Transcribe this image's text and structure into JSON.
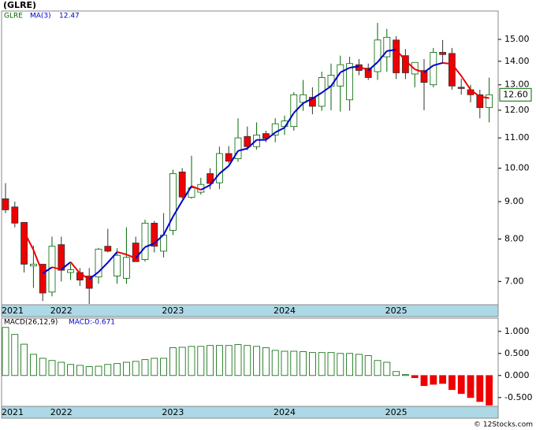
{
  "credit": "© 12Stocks.com",
  "chart_data": [
    {
      "type": "candlestick",
      "title": "(GLRE)",
      "categories": [
        "2021",
        null,
        null,
        null,
        null,
        null,
        "2022",
        null,
        null,
        null,
        null,
        null,
        null,
        null,
        null,
        null,
        null,
        null,
        "2023",
        null,
        null,
        null,
        null,
        null,
        null,
        null,
        null,
        null,
        null,
        null,
        "2024",
        null,
        null,
        null,
        null,
        null,
        null,
        null,
        null,
        null,
        null,
        null,
        "2025",
        null,
        null,
        null,
        null,
        null,
        null,
        null,
        null,
        null,
        null
      ],
      "series": [
        {
          "name": "GLRE",
          "color": "#006600",
          "down_color": "#ee0000",
          "open": [
            9.08,
            8.85,
            8.43,
            7.35,
            7.39,
            6.77,
            7.86,
            7.2,
            7.2,
            7.12,
            7.1,
            7.82,
            7.12,
            7.07,
            7.9,
            7.5,
            8.41,
            7.7,
            8.22,
            9.88,
            9.12,
            9.27,
            9.83,
            9.55,
            10.47,
            10.3,
            11.05,
            10.7,
            11.15,
            11.1,
            11.4,
            11.4,
            12.3,
            12.5,
            12.15,
            12.95,
            12.95,
            12.4,
            13.85,
            13.7,
            13.55,
            14.2,
            14.97,
            14.25,
            13.45,
            13.6,
            13.0,
            14.4,
            14.35,
            12.9,
            12.8,
            12.6,
            12.1
          ],
          "high": [
            9.54,
            9.0,
            8.43,
            7.84,
            7.39,
            8.06,
            8.06,
            7.4,
            7.3,
            7.3,
            7.78,
            8.26,
            7.77,
            8.3,
            8.06,
            8.5,
            8.47,
            8.68,
            9.95,
            10.0,
            10.4,
            9.7,
            10.0,
            10.7,
            10.72,
            11.7,
            11.4,
            11.55,
            11.25,
            11.7,
            11.8,
            12.7,
            13.2,
            12.9,
            13.55,
            13.9,
            14.25,
            14.2,
            14.1,
            13.9,
            15.8,
            15.5,
            15.15,
            14.55,
            13.9,
            14.1,
            14.6,
            14.97,
            14.6,
            13.25,
            13.0,
            12.8,
            13.3
          ],
          "low": [
            8.68,
            8.3,
            7.2,
            6.86,
            6.58,
            6.68,
            7.0,
            7.03,
            6.9,
            6.52,
            6.95,
            7.67,
            6.95,
            6.95,
            7.45,
            7.45,
            7.67,
            7.55,
            8.1,
            9.08,
            9.08,
            9.2,
            9.36,
            9.36,
            10.15,
            10.2,
            10.58,
            10.6,
            10.85,
            10.85,
            11.1,
            11.25,
            11.98,
            11.85,
            11.98,
            12.0,
            11.95,
            11.98,
            13.4,
            13.2,
            13.2,
            13.55,
            13.24,
            13.24,
            12.9,
            12.0,
            12.9,
            13.9,
            12.8,
            12.6,
            12.3,
            11.7,
            11.55
          ],
          "close": [
            8.77,
            8.41,
            7.39,
            7.39,
            6.75,
            7.82,
            7.25,
            7.26,
            7.03,
            6.85,
            7.75,
            7.7,
            7.6,
            7.55,
            7.45,
            8.41,
            7.82,
            8.1,
            9.83,
            9.13,
            9.4,
            9.5,
            9.53,
            10.47,
            10.22,
            11.0,
            10.7,
            11.1,
            10.98,
            11.5,
            11.6,
            12.6,
            12.6,
            12.15,
            13.3,
            13.4,
            13.85,
            13.9,
            13.6,
            13.3,
            14.97,
            15.1,
            13.5,
            13.5,
            13.95,
            13.1,
            14.4,
            14.3,
            12.95,
            12.85,
            12.6,
            12.1,
            12.6
          ],
          "close_label": "12.60"
        }
      ],
      "ma": {
        "name": "MA(3)",
        "value_label": "12.47",
        "color": "#0000cc",
        "down_color": "#ee0000",
        "values": [
          null,
          null,
          8.19,
          7.73,
          7.18,
          7.32,
          7.27,
          7.44,
          7.18,
          7.05,
          7.21,
          7.43,
          7.68,
          7.62,
          7.53,
          7.8,
          7.89,
          8.11,
          8.58,
          9.02,
          9.45,
          9.34,
          9.48,
          9.83,
          10.07,
          10.56,
          10.64,
          10.93,
          10.93,
          11.19,
          11.36,
          11.9,
          12.27,
          12.45,
          12.68,
          12.95,
          13.52,
          13.72,
          13.78,
          13.6,
          13.96,
          14.46,
          14.52,
          14.03,
          13.65,
          13.52,
          13.82,
          13.93,
          13.88,
          13.37,
          12.8,
          12.52,
          12.47
        ]
      },
      "ylim": [
        6.52,
        16.4
      ],
      "log_scale": true,
      "yticks": [
        {
          "value": 7,
          "label": "7.00"
        },
        {
          "value": 8,
          "label": "8.00"
        },
        {
          "value": 9,
          "label": "9.00"
        },
        {
          "value": 10,
          "label": "10.00"
        },
        {
          "value": 11,
          "label": "11.00"
        },
        {
          "value": 12,
          "label": "12.00"
        },
        {
          "value": 13,
          "label": "13.00"
        },
        {
          "value": 14,
          "label": "14.00"
        },
        {
          "value": 15,
          "label": "15.00"
        }
      ]
    },
    {
      "type": "bar",
      "title": "MACD(26,12,9)",
      "legend": "MACD:-0.671",
      "color": "#006600",
      "down_color": "#ee0000",
      "values": [
        1.09,
        0.93,
        0.71,
        0.48,
        0.39,
        0.34,
        0.3,
        0.25,
        0.23,
        0.2,
        0.21,
        0.25,
        0.27,
        0.3,
        0.32,
        0.36,
        0.39,
        0.39,
        0.63,
        0.64,
        0.66,
        0.66,
        0.68,
        0.68,
        0.68,
        0.7,
        0.68,
        0.66,
        0.63,
        0.57,
        0.55,
        0.55,
        0.54,
        0.52,
        0.52,
        0.52,
        0.5,
        0.5,
        0.48,
        0.45,
        0.34,
        0.3,
        0.09,
        0.02,
        -0.05,
        -0.23,
        -0.2,
        -0.18,
        -0.32,
        -0.41,
        -0.5,
        -0.59,
        -0.671
      ],
      "ylim": [
        -0.7,
        1.3
      ],
      "yticks": [
        {
          "value": -0.5,
          "label": "-0.500"
        },
        {
          "value": 0,
          "label": "0.000"
        },
        {
          "value": 0.5,
          "label": "0.500"
        },
        {
          "value": 1,
          "label": "1.000"
        }
      ]
    }
  ]
}
